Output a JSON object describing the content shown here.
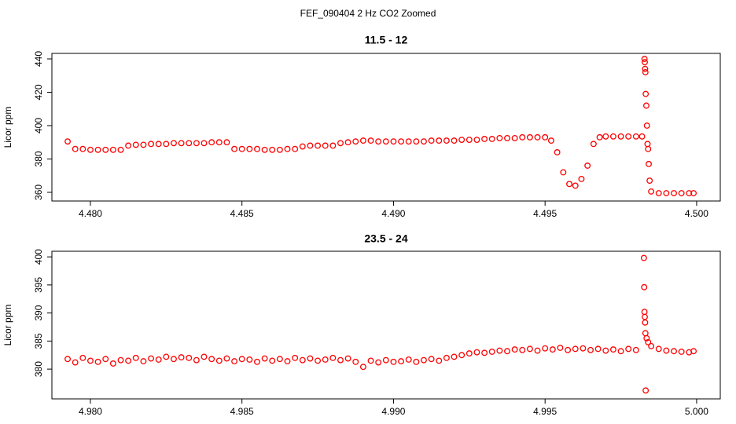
{
  "title": "FEF_090404  2 Hz CO2 Zoomed",
  "chart_data": [
    {
      "type": "scatter",
      "title": "11.5 - 12",
      "y_label": "Licor ppm",
      "color": "#ff0000",
      "xlim": [
        4.47873,
        4.50078
      ],
      "ylim": [
        354.8,
        443.3
      ],
      "xticks": [
        {
          "value": 4.48,
          "label": "4.480"
        },
        {
          "value": 4.485,
          "label": "4.485"
        },
        {
          "value": 4.49,
          "label": "4.490"
        },
        {
          "value": 4.495,
          "label": "4.495"
        },
        {
          "value": 4.5,
          "label": "4.500"
        }
      ],
      "yticks": [
        360,
        380,
        400,
        420,
        440
      ],
      "x": [
        4.47925,
        4.4795,
        4.47975,
        4.48,
        4.48025,
        4.4805,
        4.48075,
        4.481,
        4.48125,
        4.4815,
        4.48175,
        4.482,
        4.48225,
        4.4825,
        4.48275,
        4.483,
        4.48325,
        4.4835,
        4.48375,
        4.484,
        4.48425,
        4.4845,
        4.48475,
        4.485,
        4.48525,
        4.4855,
        4.48575,
        4.486,
        4.48625,
        4.4865,
        4.48675,
        4.487,
        4.48725,
        4.4875,
        4.48775,
        4.488,
        4.48825,
        4.4885,
        4.48875,
        4.489,
        4.48925,
        4.4895,
        4.48975,
        4.49,
        4.49025,
        4.4905,
        4.49075,
        4.491,
        4.49125,
        4.4915,
        4.49175,
        4.492,
        4.49225,
        4.4925,
        4.49275,
        4.493,
        4.49325,
        4.4935,
        4.49375,
        4.494,
        4.49425,
        4.4945,
        4.49475,
        4.495,
        4.4952,
        4.4954,
        4.4956,
        4.4958,
        4.496,
        4.4962,
        4.4964,
        4.4966,
        4.4968,
        4.497,
        4.49725,
        4.4975,
        4.49775,
        4.498,
        4.4982,
        4.49828,
        4.49829,
        4.4983,
        4.49831,
        4.49832,
        4.49834,
        4.49836,
        4.49838,
        4.4984,
        4.49842,
        4.49845,
        4.4985,
        4.49875,
        4.499,
        4.49925,
        4.4995,
        4.49975,
        4.4999
      ],
      "values": [
        390.5,
        386,
        386,
        385.5,
        385.5,
        385.5,
        385.5,
        385.5,
        388,
        388.5,
        388.5,
        389,
        389,
        389,
        389.5,
        389.5,
        389.5,
        389.5,
        389.5,
        390,
        390,
        390,
        386,
        386,
        386,
        386,
        385.5,
        385.5,
        385.5,
        386,
        386,
        387.5,
        388,
        388,
        388,
        388,
        389.5,
        390,
        390.5,
        391,
        391,
        390.5,
        390.5,
        390.5,
        390.5,
        390.5,
        390.5,
        390.5,
        391,
        391,
        391,
        391,
        391.5,
        391.5,
        391.5,
        392,
        392,
        392.5,
        392.5,
        392.5,
        393,
        393,
        393,
        393,
        391,
        384,
        372,
        365,
        364,
        368,
        376,
        389,
        393,
        393.5,
        393.5,
        393.5,
        393.5,
        393.5,
        393.5,
        440,
        438,
        434,
        432,
        419,
        412,
        400,
        389,
        386,
        377,
        367,
        360.5,
        359.5,
        359.5,
        359.5,
        359.5,
        359.5,
        359.5
      ]
    },
    {
      "type": "scatter",
      "title": "23.5 - 24",
      "y_label": "Licor ppm",
      "color": "#ff0000",
      "xlim": [
        4.97873,
        5.00078
      ],
      "ylim": [
        374.7,
        401
      ],
      "xticks": [
        {
          "value": 4.98,
          "label": "4.980"
        },
        {
          "value": 4.985,
          "label": "4.985"
        },
        {
          "value": 4.99,
          "label": "4.990"
        },
        {
          "value": 4.995,
          "label": "4.995"
        },
        {
          "value": 5,
          "label": "5.000"
        }
      ],
      "yticks": [
        380,
        385,
        390,
        395,
        400
      ],
      "x": [
        4.97925,
        4.9795,
        4.97975,
        4.98,
        4.98025,
        4.9805,
        4.98075,
        4.981,
        4.98125,
        4.9815,
        4.98175,
        4.982,
        4.98225,
        4.9825,
        4.98275,
        4.983,
        4.98325,
        4.9835,
        4.98375,
        4.984,
        4.98425,
        4.9845,
        4.98475,
        4.985,
        4.98525,
        4.9855,
        4.98575,
        4.986,
        4.98625,
        4.9865,
        4.98675,
        4.987,
        4.98725,
        4.9875,
        4.98775,
        4.988,
        4.98825,
        4.9885,
        4.98875,
        4.989,
        4.98925,
        4.9895,
        4.98975,
        4.99,
        4.99025,
        4.9905,
        4.99075,
        4.991,
        4.99125,
        4.9915,
        4.99175,
        4.992,
        4.99225,
        4.9925,
        4.99275,
        4.993,
        4.99325,
        4.9935,
        4.99375,
        4.994,
        4.99425,
        4.9945,
        4.99475,
        4.995,
        4.99525,
        4.9955,
        4.99575,
        4.996,
        4.99625,
        4.9965,
        4.99675,
        4.997,
        4.99725,
        4.9975,
        4.99775,
        4.998,
        4.99826,
        4.99827,
        4.99828,
        4.99829,
        4.9983,
        4.99831,
        4.99832,
        4.99835,
        4.9984,
        4.9985,
        4.99875,
        4.999,
        4.99925,
        4.9995,
        4.99975,
        4.9999
      ],
      "values": [
        381.8,
        381.2,
        382,
        381.5,
        381.3,
        381.8,
        381,
        381.6,
        381.5,
        382,
        381.4,
        381.9,
        381.7,
        382.2,
        381.8,
        382.1,
        382,
        381.6,
        382.2,
        381.8,
        381.5,
        381.9,
        381.4,
        381.8,
        381.7,
        381.3,
        381.9,
        381.5,
        381.8,
        381.4,
        382,
        381.6,
        381.9,
        381.5,
        381.7,
        382,
        381.6,
        381.9,
        381.3,
        380.4,
        381.5,
        381.2,
        381.6,
        381.3,
        381.4,
        381.7,
        381.3,
        381.6,
        381.8,
        381.5,
        382,
        382.2,
        382.5,
        382.8,
        383,
        382.9,
        383.1,
        383.3,
        383.2,
        383.5,
        383.4,
        383.6,
        383.3,
        383.7,
        383.5,
        383.8,
        383.4,
        383.6,
        383.7,
        383.4,
        383.6,
        383.3,
        383.5,
        383.2,
        383.6,
        383.4,
        399.8,
        394.6,
        390.2,
        389.3,
        388.3,
        386.4,
        376.2,
        385.5,
        384.8,
        384.1,
        383.6,
        383.3,
        383.2,
        383.1,
        383,
        383.2
      ]
    }
  ]
}
